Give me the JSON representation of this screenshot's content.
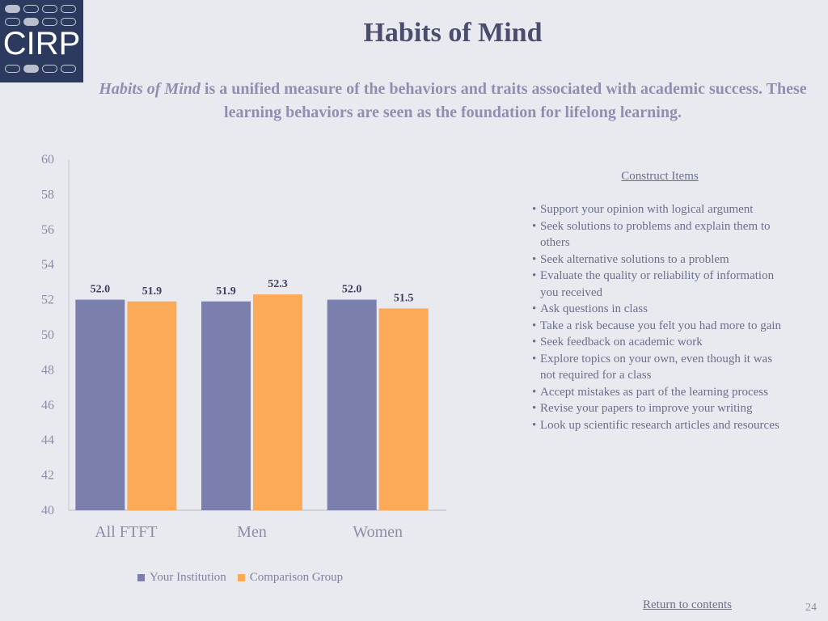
{
  "logo": {
    "text": "CIRP"
  },
  "header": {
    "title": "Habits of Mind",
    "subtitle_lead": "Habits of Mind",
    "subtitle_rest": " is a unified measure of the behaviors and traits associated with academic success. These learning behaviors are seen as the foundation for lifelong learning."
  },
  "chart_data": {
    "type": "bar",
    "categories": [
      "All FTFT",
      "Men",
      "Women"
    ],
    "series": [
      {
        "name": "Your Institution",
        "color": "#7a7fad",
        "values": [
          52.0,
          51.9,
          52.0
        ],
        "labels": [
          "52.0",
          "51.9",
          "52.0"
        ]
      },
      {
        "name": "Comparison Group",
        "color": "#fcaa58",
        "values": [
          51.9,
          52.3,
          51.5
        ],
        "labels": [
          "51.9",
          "52.3",
          "51.5"
        ]
      }
    ],
    "ylim": [
      40,
      60
    ],
    "yticks": [
      "40",
      "42",
      "44",
      "46",
      "48",
      "50",
      "52",
      "54",
      "56",
      "58",
      "60"
    ],
    "xlabel": "",
    "ylabel": "",
    "legend_position": "bottom",
    "grid": false
  },
  "construct": {
    "title": "Construct Items",
    "items": [
      "Support your opinion with logical argument",
      "Seek solutions to problems and explain them to others",
      "Seek alternative solutions to a problem",
      "Evaluate the quality or reliability of information you received",
      "Ask questions in class",
      "Take a risk because you felt you had more to gain",
      "Seek feedback on academic work",
      "Explore topics on your own, even though it was not required for a class",
      "Accept mistakes as part of the learning process",
      "Revise your papers to improve your writing",
      "Look up scientific research articles and resources"
    ]
  },
  "footer": {
    "return_link": "Return to contents",
    "page_number": "24"
  }
}
